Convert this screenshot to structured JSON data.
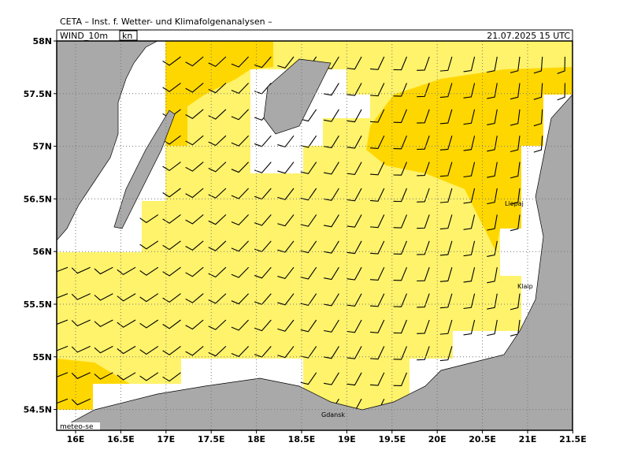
{
  "header": {
    "title": "CETA – Inst. f. Wetter- und Klimafolgenanalysen –",
    "field": "WIND_10m",
    "unit": "kn",
    "datetime": "21.07.2025 15 UTC"
  },
  "axes": {
    "lat_labels": [
      "58N",
      "57.5N",
      "57N",
      "56.5N",
      "56N",
      "55.5N",
      "55N",
      "54.5N"
    ],
    "lon_labels": [
      "16E",
      "16.5E",
      "17E",
      "17.5E",
      "18E",
      "18.5E",
      "19E",
      "19.5E",
      "20E",
      "20.5E",
      "21E",
      "21.5E"
    ]
  },
  "places": [
    "Liepaj",
    "Klaip",
    "Gdansk"
  ],
  "footer": {
    "credit": "meteo-se"
  }
}
